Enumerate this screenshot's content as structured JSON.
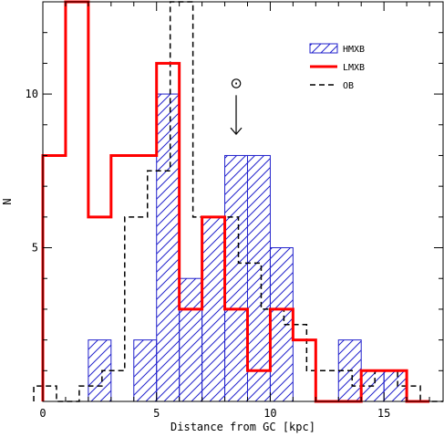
{
  "chart_data": {
    "type": "bar",
    "subtype": "histogram-step",
    "xlabel": "Distance from GC [kpc]",
    "ylabel": "N",
    "xlim": [
      0,
      17.6
    ],
    "ylim": [
      0,
      13
    ],
    "x_ticks": [
      0,
      5,
      10,
      15
    ],
    "y_ticks": [
      5,
      10
    ],
    "bin_width": 1,
    "series": [
      {
        "name": "HMXB",
        "style": "hatched",
        "color": "#2222cc",
        "bin_starts": [
          0,
          1,
          2,
          3,
          4,
          5,
          6,
          7,
          8,
          9,
          10,
          11,
          12,
          13,
          14,
          15,
          16
        ],
        "values": [
          0,
          0,
          2,
          0,
          2,
          10,
          4,
          6,
          8,
          8,
          5,
          0,
          0,
          2,
          1,
          1,
          0
        ]
      },
      {
        "name": "LMXB",
        "style": "solid",
        "color": "#ff0000",
        "bin_starts": [
          0,
          1,
          2,
          3,
          4,
          5,
          6,
          7,
          8,
          9,
          10,
          11,
          12,
          13,
          14,
          15,
          16
        ],
        "values": [
          8,
          13,
          6,
          8,
          8,
          11,
          3,
          6,
          3,
          1,
          3,
          2,
          0,
          0,
          1,
          1,
          0
        ]
      },
      {
        "name": "OB",
        "style": "dashed",
        "color": "#000000",
        "bin_starts": [
          -0.4,
          0.6,
          1.6,
          2.6,
          3.6,
          4.6,
          5.6,
          6.6,
          7.6,
          8.6,
          9.6,
          10.6,
          11.6,
          12.6,
          13.6,
          14.6,
          15.6,
          16.6
        ],
        "values": [
          0.5,
          0,
          0.5,
          1,
          6,
          7.5,
          13,
          6,
          6,
          4.5,
          3,
          2.5,
          1,
          1,
          0.5,
          1,
          0.5,
          0
        ]
      }
    ],
    "annotation": {
      "symbol": "⊙",
      "x": 8.5,
      "y_top": 10.2,
      "y_bottom": 8.9
    }
  }
}
